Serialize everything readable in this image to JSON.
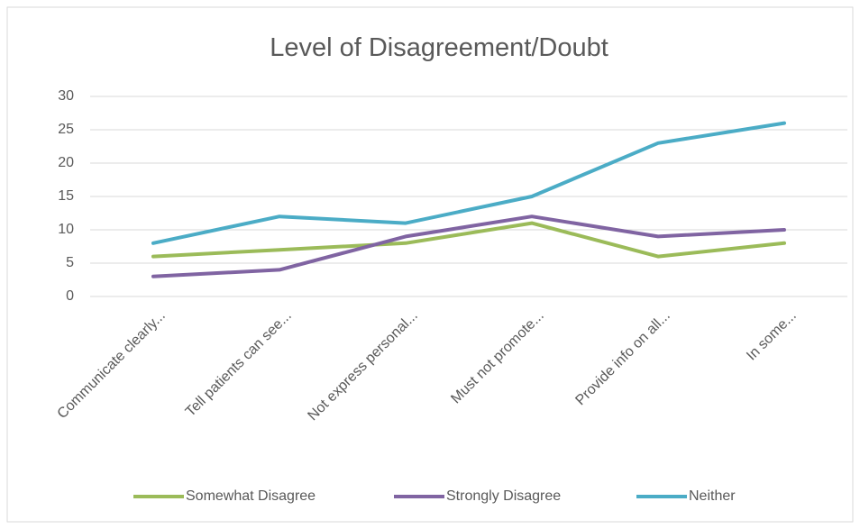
{
  "chart_data": {
    "type": "line",
    "title": "Level of Disagreement/Doubt",
    "categories": [
      "Communicate clearly...",
      "Tell patients can see...",
      "Not express personal...",
      "Must not promote...",
      "Provide info on all...",
      "In some..."
    ],
    "series": [
      {
        "name": "Somewhat Disagree",
        "color": "#9bbb59",
        "values": [
          6,
          7,
          8,
          11,
          6,
          8
        ]
      },
      {
        "name": "Strongly Disagree",
        "color": "#8064a2",
        "values": [
          3,
          4,
          9,
          12,
          9,
          10
        ]
      },
      {
        "name": "Neither",
        "color": "#4bacc6",
        "values": [
          8,
          12,
          11,
          15,
          23,
          26
        ]
      }
    ],
    "ylim": [
      0,
      30
    ],
    "yticks": [
      0,
      5,
      10,
      15,
      20,
      25,
      30
    ],
    "grid": true,
    "legend": "bottom"
  }
}
